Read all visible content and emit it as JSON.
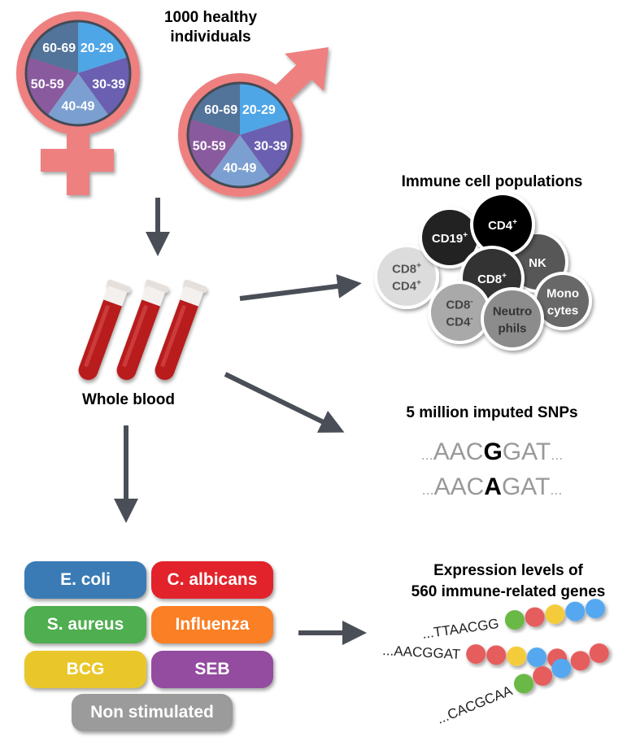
{
  "title": "1000 healthy individuals",
  "title_lines": [
    "1000 healthy",
    "individuals"
  ],
  "age_groups": [
    {
      "label": "20-29",
      "color": "#4fa6e6"
    },
    {
      "label": "30-39",
      "color": "#6a5fb0"
    },
    {
      "label": "40-49",
      "color": "#7b9fd0"
    },
    {
      "label": "50-59",
      "color": "#8a5a9e"
    },
    {
      "label": "60-69",
      "color": "#52739a"
    }
  ],
  "sex_symbol_color": "#ee8080",
  "arrow_color": "#4a4f57",
  "whole_blood_label": "Whole blood",
  "immune": {
    "title": "Immune cell populations",
    "cells": [
      {
        "lines": [
          [
            "CD8",
            "+"
          ],
          [
            "CD4",
            "+"
          ]
        ],
        "color": "#dcdcdc",
        "text": "#555"
      },
      {
        "lines": [
          [
            "CD19",
            "+"
          ]
        ],
        "color": "#222222",
        "text": "#fff"
      },
      {
        "lines": [
          [
            "NK",
            ""
          ]
        ],
        "color": "#575757",
        "text": "#fff"
      },
      {
        "lines": [
          [
            "CD4",
            "+"
          ]
        ],
        "color": "#000000",
        "text": "#fff"
      },
      {
        "lines": [
          [
            "CD8",
            "+"
          ]
        ],
        "color": "#333333",
        "text": "#fff"
      },
      {
        "lines": [
          [
            "CD8",
            "-"
          ],
          [
            "CD4",
            "-"
          ]
        ],
        "color": "#a9a9a9",
        "text": "#444"
      },
      {
        "lines": [
          [
            "Mono",
            ""
          ],
          [
            "cytes",
            ""
          ]
        ],
        "color": "#686868",
        "text": "#fff"
      },
      {
        "lines": [
          [
            "Neutro",
            ""
          ],
          [
            "phils",
            ""
          ]
        ],
        "color": "#8c8c8c",
        "text": "#333"
      }
    ]
  },
  "snps": {
    "title": "5 million imputed SNPs",
    "rows": [
      {
        "pre": "...",
        "left": "AAC",
        "allele": "G",
        "right": "GAT",
        "post": "..."
      },
      {
        "pre": "...",
        "left": "AAC",
        "allele": "A",
        "right": "GAT",
        "post": "..."
      }
    ]
  },
  "stimuli": [
    {
      "label": "E. coli",
      "color": "#3a7bb5"
    },
    {
      "label": "C. albicans",
      "color": "#e2232b"
    },
    {
      "label": "S. aureus",
      "color": "#4fae4f"
    },
    {
      "label": "Influenza",
      "color": "#fb7f25"
    },
    {
      "label": "BCG",
      "color": "#e9c72a"
    },
    {
      "label": "SEB",
      "color": "#934c9f"
    },
    {
      "label": "Non stimulated",
      "color": "#9b9b9b"
    }
  ],
  "expression": {
    "title_lines": [
      "Expression levels of",
      "560 immune-related genes"
    ],
    "bead_colors": {
      "green": "#6bb845",
      "red": "#e55d5d",
      "yellow": "#f4cc3a",
      "blue": "#55a8ef"
    },
    "sequences": [
      {
        "text": "...TTAACGG",
        "beads": [
          "green",
          "red",
          "yellow",
          "blue",
          "blue"
        ]
      },
      {
        "text": "...AACGGAT",
        "beads": [
          "red",
          "red",
          "yellow",
          "blue",
          "red"
        ]
      },
      {
        "text": "...CACGCAA",
        "beads": [
          "green",
          "red",
          "blue",
          "red",
          "red"
        ]
      }
    ]
  }
}
